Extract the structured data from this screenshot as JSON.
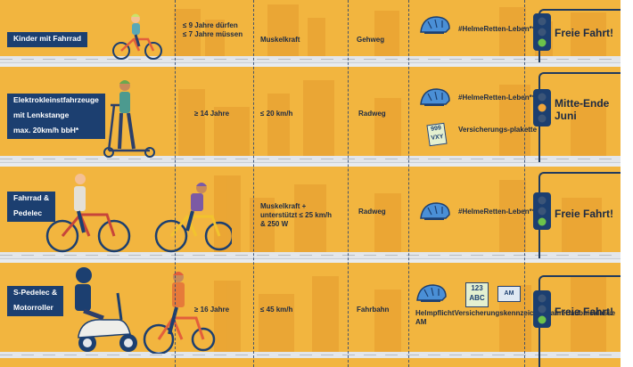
{
  "rows": [
    {
      "vehicle": [
        "Kinder mit Fahrrad"
      ],
      "age": [
        "≤ 9 Jahre dürfen",
        "≤ 7 Jahre müssen"
      ],
      "speed": [
        "Muskelkraft"
      ],
      "lane": "Gehweg",
      "equipment": [
        "#HelmeRetten-",
        "Leben**"
      ],
      "status": [
        "Freie Fahrt!"
      ]
    },
    {
      "vehicle": [
        "Elektrokleinstfahrzeuge",
        "mit Lenkstange",
        "max. 20km/h bbH*"
      ],
      "age": [
        "≥ 14 Jahre"
      ],
      "speed": [
        "≤ 20 km/h"
      ],
      "lane": "Radweg",
      "equipment": [
        "#HelmeRetten-",
        "Leben**"
      ],
      "extra": [
        "Versicherungs-",
        "plakette"
      ],
      "plate": [
        "999",
        "VXY"
      ],
      "status": [
        "Mitte-Ende",
        "Juni"
      ]
    },
    {
      "vehicle": [
        "Fahrrad &",
        "Pedelec"
      ],
      "age": [],
      "speed": [
        "Muskelkraft +",
        "unterstützt ≤ 25 km/h",
        "& 250 W"
      ],
      "lane": "Radweg",
      "equipment": [
        "#HelmeRetten-",
        "Leben**"
      ],
      "status": [
        "Freie Fahrt!"
      ]
    },
    {
      "vehicle": [
        "S-Pedelec &",
        "Motorroller"
      ],
      "age": [
        "≥ 16 Jahre"
      ],
      "speed": [
        "≤ 45 km/h"
      ],
      "lane": "Fahrbahn",
      "equipment": [
        "Helmpflicht",
        "Versicherungskennzeichen",
        "Fahrerlaubnisklasse AM"
      ],
      "plate": [
        "123",
        "ABC"
      ],
      "license": "AM",
      "status": [
        "Freie Fahrt!"
      ]
    }
  ],
  "colors": {
    "background": "#f2b53f",
    "navy": "#1c3f70",
    "helmet": "#4a8fd6",
    "text": "#1c2a44"
  }
}
